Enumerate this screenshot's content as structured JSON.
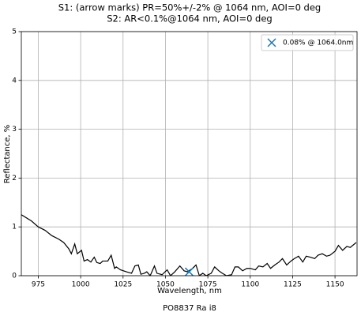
{
  "chart_data": {
    "type": "line",
    "title": [
      "S1: (arrow marks) PR=50%+/-2% @ 1064 nm, AOI=0 deg",
      "S2: AR<0.1%@1064 nm, AOI=0 deg"
    ],
    "x_label": "Wavelength, nm",
    "y_label": "Reflectance, %",
    "caption": "PO8837 Ra i8",
    "x": [
      965,
      971,
      975,
      979,
      983,
      987,
      990,
      993,
      994.5,
      996.5,
      998,
      1000.5,
      1002,
      1004,
      1006,
      1008,
      1009.5,
      1011.5,
      1013,
      1016,
      1018,
      1020,
      1021,
      1023.5,
      1027,
      1030,
      1032,
      1034,
      1035.5,
      1037.5,
      1039,
      1041,
      1043.5,
      1045,
      1048,
      1051,
      1053,
      1055.5,
      1058.5,
      1061,
      1063,
      1066,
      1068,
      1070,
      1072,
      1074,
      1077,
      1079,
      1081.5,
      1083.5,
      1086,
      1089,
      1091,
      1093,
      1095.5,
      1098,
      1100,
      1103,
      1105,
      1107.5,
      1110,
      1112,
      1114.5,
      1117,
      1119,
      1121.5,
      1124,
      1126,
      1128.5,
      1131,
      1133,
      1135.5,
      1138,
      1140,
      1142.5,
      1145,
      1147,
      1150,
      1152,
      1154.5,
      1157,
      1159,
      1162.5
    ],
    "values": [
      1.25,
      1.12,
      1.0,
      0.93,
      0.82,
      0.75,
      0.68,
      0.55,
      0.45,
      0.65,
      0.45,
      0.52,
      0.3,
      0.33,
      0.28,
      0.38,
      0.27,
      0.25,
      0.3,
      0.3,
      0.42,
      0.15,
      0.18,
      0.12,
      0.08,
      0.05,
      0.2,
      0.22,
      0.03,
      0.05,
      0.08,
      0.0,
      0.2,
      0.05,
      0.02,
      0.12,
      0.0,
      0.08,
      0.2,
      0.1,
      0.08,
      0.15,
      0.22,
      0.0,
      0.05,
      0.0,
      0.05,
      0.18,
      0.1,
      0.05,
      0.0,
      0.02,
      0.18,
      0.18,
      0.1,
      0.15,
      0.15,
      0.12,
      0.2,
      0.18,
      0.25,
      0.15,
      0.22,
      0.28,
      0.35,
      0.22,
      0.3,
      0.35,
      0.4,
      0.28,
      0.4,
      0.38,
      0.35,
      0.42,
      0.45,
      0.4,
      0.42,
      0.5,
      0.62,
      0.52,
      0.6,
      0.58,
      0.68
    ],
    "color": "#000000",
    "highlight": {
      "name": "0.08% @ 1064.0nm",
      "x": 1064,
      "y": 0.08,
      "color": "#1f77b4"
    },
    "xlim": [
      965,
      1163
    ],
    "ylim": [
      0,
      5
    ],
    "xticks": [
      975,
      1000,
      1025,
      1050,
      1075,
      1100,
      1125,
      1150
    ],
    "yticks": [
      0,
      1,
      2,
      3,
      4,
      5
    ],
    "grid": true,
    "legend": "upper right"
  }
}
